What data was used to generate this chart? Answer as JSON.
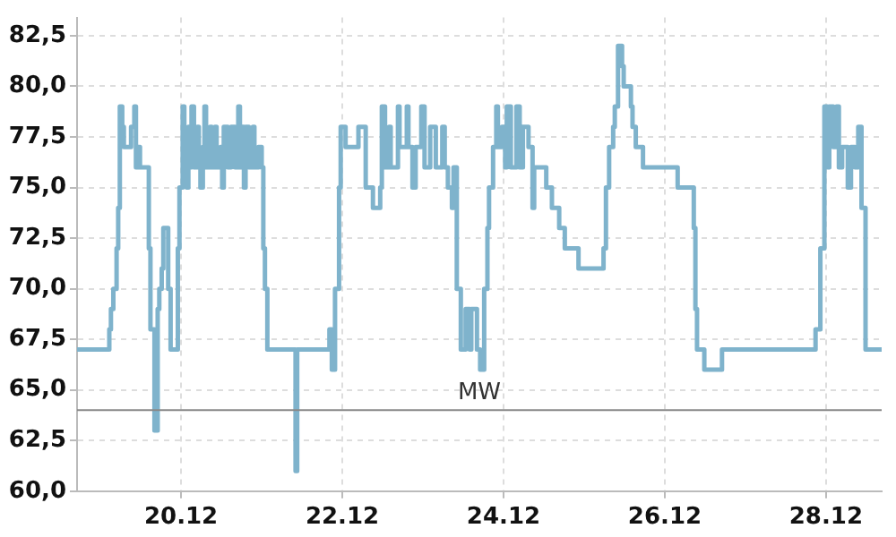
{
  "chart_data": {
    "type": "step",
    "color": "#7fb3cc",
    "x": [
      "--12-18T17:02",
      "--12-19T02:10",
      "--12-19T02:38",
      "--12-19T03:07",
      "--12-19T03:50",
      "--12-19T04:19",
      "--12-19T04:48",
      "--12-19T05:17",
      "--12-19T05:46",
      "--12-19T06:29",
      "--12-19T06:58",
      "--12-19T08:38",
      "--12-19T09:07",
      "--12-19T10:05",
      "--12-19T10:34",
      "--12-19T11:17",
      "--12-19T11:46",
      "--12-19T12:43",
      "--12-19T14:24",
      "--12-19T14:53",
      "--12-19T15:22",
      "--12-19T16:05",
      "--12-19T17:02",
      "--12-19T17:31",
      "--12-19T18:14",
      "--12-19T18:43",
      "--12-19T19:41",
      "--12-19T20:10",
      "--12-19T20:53",
      "--12-19T21:50",
      "--12-19T23:02",
      "--12-19T23:31",
      "--12-20T00:29",
      "--12-20T00:58",
      "--12-20T01:41",
      "--12-20T02:10",
      "--12-20T02:38",
      "--12-20T03:07",
      "--12-20T03:50",
      "--12-20T04:48",
      "--12-20T05:17",
      "--12-20T05:46",
      "--12-20T06:29",
      "--12-20T06:58",
      "--12-20T07:26",
      "--12-20T08:38",
      "--12-20T09:07",
      "--12-20T10:05",
      "--12-20T10:34",
      "--12-20T11:46",
      "--12-20T12:14",
      "--12-20T12:43",
      "--12-20T13:55",
      "--12-20T14:53",
      "--12-20T16:05",
      "--12-20T17:02",
      "--12-20T17:31",
      "--12-20T18:14",
      "--12-20T18:43",
      "--12-20T19:12",
      "--12-20T20:10",
      "--12-20T21:22",
      "--12-20T21:50",
      "--12-20T23:02",
      "--12-21T00:00",
      "--12-21T00:29",
      "--12-21T00:58",
      "--12-21T01:41",
      "--12-21T09:36",
      "--12-21T10:05",
      "--12-21T10:34",
      "--12-21T19:41",
      "--12-21T20:10",
      "--12-21T20:53",
      "--12-21T21:50",
      "--12-21T23:02",
      "--12-21T23:31",
      "--12-22T00:58",
      "--12-22T03:50",
      "--12-22T04:48",
      "--12-22T06:29",
      "--12-22T06:58",
      "--12-22T09:07",
      "--12-22T11:17",
      "--12-22T11:46",
      "--12-22T12:43",
      "--12-22T13:55",
      "--12-22T14:24",
      "--12-22T16:34",
      "--12-22T17:02",
      "--12-22T19:12",
      "--12-22T19:41",
      "--12-22T20:53",
      "--12-22T21:50",
      "--12-22T23:31",
      "--12-23T00:29",
      "--12-23T02:10",
      "--12-23T03:50",
      "--12-23T05:46",
      "--12-23T06:29",
      "--12-23T07:26",
      "--12-23T08:38",
      "--12-23T09:07",
      "--12-23T10:05",
      "--12-23T11:17",
      "--12-23T12:43",
      "--12-23T13:55",
      "--12-23T14:24",
      "--12-23T16:05",
      "--12-23T17:02",
      "--12-23T18:14",
      "--12-23T19:12",
      "--12-23T19:41",
      "--12-23T20:53",
      "--12-23T21:50",
      "--12-23T22:19",
      "--12-23T23:31",
      "--12-24T00:29",
      "--12-24T00:58",
      "--12-24T02:10",
      "--12-24T03:50",
      "--12-24T04:48",
      "--12-24T05:46",
      "--12-24T07:26",
      "--12-24T08:38",
      "--12-24T09:07",
      "--12-24T11:17",
      "--12-24T12:43",
      "--12-24T14:24",
      "--12-24T16:34",
      "--12-24T18:14",
      "--12-24T22:19",
      "--12-25T04:48",
      "--12-25T05:46",
      "--12-25T06:29",
      "--12-25T07:26",
      "--12-25T08:38",
      "--12-25T09:07",
      "--12-25T10:05",
      "--12-25T11:17",
      "--12-25T11:46",
      "--12-25T13:55",
      "--12-25T14:24",
      "--12-25T15:22",
      "--12-25T17:02",
      "--12-25T17:31",
      "--12-26T03:07",
      "--12-26T03:50",
      "--12-26T07:26",
      "--12-26T08:38",
      "--12-26T09:07",
      "--12-26T09:36",
      "--12-26T11:17",
      "--12-26T11:46",
      "--12-26T16:34",
      "--12-26T17:02",
      "--12-27T19:41",
      "--12-27T20:53",
      "--12-27T21:50",
      "--12-27T22:19",
      "--12-27T23:31",
      "--12-28T00:29",
      "--12-28T00:58",
      "--12-28T02:10",
      "--12-28T03:07",
      "--12-28T03:50",
      "--12-28T04:48",
      "--12-28T06:29",
      "--12-28T07:26",
      "--12-28T08:38",
      "--12-28T09:36",
      "--12-28T10:34",
      "--12-28T11:46",
      "--12-28T16:34"
    ],
    "values": [
      67,
      67,
      68,
      69,
      70,
      70,
      72,
      74,
      79,
      78,
      77,
      77,
      78,
      79,
      76,
      77,
      76,
      76,
      72,
      68,
      68,
      63,
      69,
      70,
      71,
      73,
      73,
      70,
      67,
      67,
      72,
      75,
      79,
      77,
      75,
      78,
      76,
      79,
      76,
      78,
      76,
      75,
      77,
      79,
      76,
      78,
      76,
      78,
      76,
      77,
      75,
      78,
      76,
      78,
      76,
      79,
      76,
      78,
      75,
      78,
      76,
      78,
      76,
      77,
      76,
      72,
      70,
      67,
      67,
      61,
      67,
      67,
      68,
      66,
      70,
      75,
      78,
      77,
      77,
      78,
      78,
      75,
      74,
      75,
      79,
      76,
      78,
      76,
      79,
      77,
      79,
      77,
      75,
      77,
      79,
      76,
      78,
      76,
      78,
      76,
      75,
      74,
      76,
      70,
      67,
      69,
      67,
      69,
      67,
      66,
      70,
      73,
      75,
      77,
      79,
      77,
      78,
      76,
      79,
      76,
      79,
      76,
      78,
      77,
      74,
      76,
      76,
      75,
      74,
      73,
      72,
      71,
      71,
      72,
      75,
      77,
      78,
      79,
      82,
      81,
      80,
      79,
      78,
      77,
      77,
      76,
      76,
      75,
      75,
      73,
      69,
      67,
      67,
      66,
      66,
      67,
      67,
      68,
      68,
      72,
      79,
      76,
      79,
      77,
      79,
      76,
      77,
      75,
      77,
      76,
      78,
      74,
      67,
      67
    ],
    "xlim": [
      "--12-18T17:02",
      "--12-28T16:34"
    ],
    "xticks": [
      {
        "value": "--12-20",
        "label": "20.12"
      },
      {
        "value": "--12-22",
        "label": "22.12"
      },
      {
        "value": "--12-24",
        "label": "24.12"
      },
      {
        "value": "--12-26",
        "label": "26.12"
      },
      {
        "value": "--12-28",
        "label": "28.12"
      }
    ],
    "ylim": [
      60,
      83.4
    ],
    "yticks": [
      {
        "value": 60,
        "label": "60,0"
      },
      {
        "value": 62.5,
        "label": "62,5"
      },
      {
        "value": 65,
        "label": "65,0"
      },
      {
        "value": 67.5,
        "label": "67,5"
      },
      {
        "value": 70,
        "label": "70,0"
      },
      {
        "value": 72.5,
        "label": "72,5"
      },
      {
        "value": 75,
        "label": "75,0"
      },
      {
        "value": 77.5,
        "label": "77,5"
      },
      {
        "value": 80,
        "label": "80,0"
      },
      {
        "value": 82.5,
        "label": "82,5"
      }
    ],
    "grid": true,
    "ref_lines": [
      {
        "axis": "y",
        "value": 64,
        "label": "MW",
        "color": "#888888"
      }
    ]
  }
}
